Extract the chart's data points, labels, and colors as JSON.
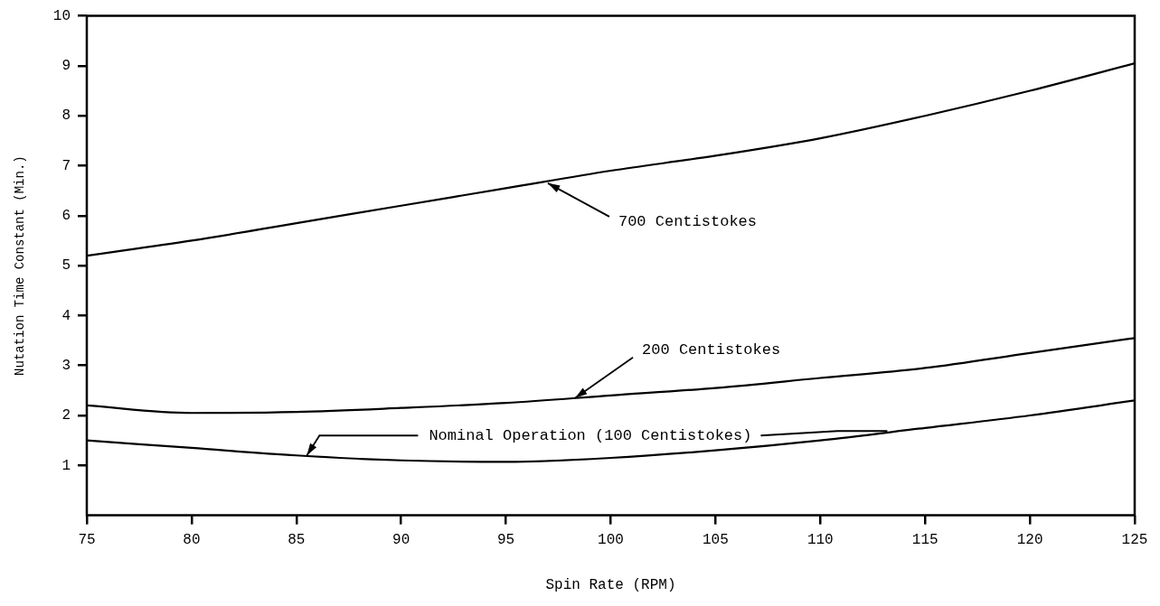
{
  "chart_data": {
    "type": "line",
    "xlabel": "Spin Rate (RPM)",
    "ylabel": "Nutation Time Constant (Min.)",
    "x": [
      75,
      80,
      85,
      90,
      95,
      100,
      105,
      110,
      115,
      120,
      125
    ],
    "series": [
      {
        "color": "#000000",
        "values": [
          5.2,
          5.5,
          5.85,
          6.2,
          6.55,
          6.9,
          7.2,
          7.55,
          8.0,
          8.5,
          9.05
        ]
      },
      {
        "color": "#000000",
        "values": [
          2.2,
          2.05,
          2.07,
          2.15,
          2.25,
          2.4,
          2.55,
          2.75,
          2.95,
          3.25,
          3.55
        ]
      },
      {
        "color": "#000000",
        "values": [
          1.5,
          1.35,
          1.2,
          1.1,
          1.07,
          1.15,
          1.3,
          1.5,
          1.75,
          2.0,
          2.3
        ]
      }
    ],
    "xlim": [
      75,
      125
    ],
    "xticks": [
      75,
      80,
      85,
      90,
      95,
      100,
      105,
      110,
      115,
      120,
      125
    ],
    "ylim": [
      0,
      10
    ],
    "yticks": [
      1,
      2,
      3,
      4,
      5,
      6,
      7,
      8,
      9,
      10
    ],
    "grid": false,
    "legend": false,
    "marker": "none",
    "line_style": "solid",
    "annotations": [
      {
        "text": "700 Centistokes",
        "x": 97,
        "y": 6.65
      },
      {
        "text": "200 Centistokes",
        "x": 98.3,
        "y": 2.35
      },
      {
        "text": "Nominal Operation (100 Centistokes)",
        "x": 85.5,
        "y": 1.2
      }
    ]
  }
}
